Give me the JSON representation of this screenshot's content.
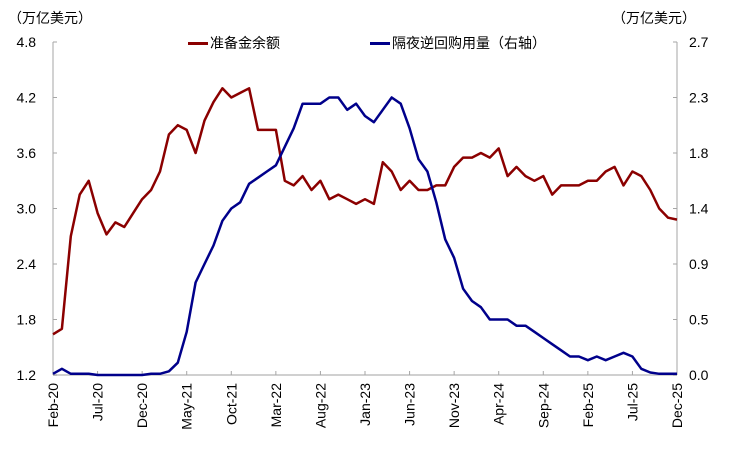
{
  "chart_data": {
    "type": "line",
    "title": "",
    "left_axis": {
      "unit_label": "（万亿美元）",
      "ticks": [
        "4.8",
        "4.2",
        "3.6",
        "3.0",
        "2.4",
        "1.8",
        "1.2"
      ],
      "ylim": [
        1.2,
        4.8
      ]
    },
    "right_axis": {
      "unit_label": "（万亿美元）",
      "ticks": [
        "2.7",
        "2.3",
        "1.8",
        "1.4",
        "0.9",
        "0.5",
        "0.0"
      ],
      "ylim": [
        0.0,
        2.7
      ]
    },
    "x_tick_labels": [
      "Feb-20",
      "Jul-20",
      "Dec-20",
      "May-21",
      "Oct-21",
      "Mar-22",
      "Aug-22",
      "Jan-23",
      "Jun-23",
      "Nov-23",
      "Apr-24",
      "Sep-24",
      "Feb-25",
      "Jul-25",
      "Dec-25"
    ],
    "legend_position": "top",
    "grid": false,
    "series": [
      {
        "name": "准备金余额",
        "axis": "left",
        "color": "#8B0000",
        "points": [
          [
            "Feb-20",
            1.64
          ],
          [
            "Mar-20",
            1.7
          ],
          [
            "Apr-20",
            2.7
          ],
          [
            "May-20",
            3.15
          ],
          [
            "Jun-20",
            3.3
          ],
          [
            "Jul-20",
            2.95
          ],
          [
            "Aug-20",
            2.72
          ],
          [
            "Sep-20",
            2.85
          ],
          [
            "Oct-20",
            2.8
          ],
          [
            "Nov-20",
            2.95
          ],
          [
            "Dec-20",
            3.1
          ],
          [
            "Jan-21",
            3.2
          ],
          [
            "Feb-21",
            3.4
          ],
          [
            "Mar-21",
            3.8
          ],
          [
            "Apr-21",
            3.9
          ],
          [
            "May-21",
            3.85
          ],
          [
            "Jun-21",
            3.6
          ],
          [
            "Jul-21",
            3.95
          ],
          [
            "Aug-21",
            4.15
          ],
          [
            "Sep-21",
            4.3
          ],
          [
            "Oct-21",
            4.2
          ],
          [
            "Nov-21",
            4.25
          ],
          [
            "Dec-21",
            4.3
          ],
          [
            "Jan-22",
            3.85
          ],
          [
            "Feb-22",
            3.85
          ],
          [
            "Mar-22",
            3.85
          ],
          [
            "Apr-22",
            3.3
          ],
          [
            "May-22",
            3.25
          ],
          [
            "Jun-22",
            3.35
          ],
          [
            "Jul-22",
            3.2
          ],
          [
            "Aug-22",
            3.3
          ],
          [
            "Sep-22",
            3.1
          ],
          [
            "Oct-22",
            3.15
          ],
          [
            "Nov-22",
            3.1
          ],
          [
            "Dec-22",
            3.05
          ],
          [
            "Jan-23",
            3.1
          ],
          [
            "Feb-23",
            3.05
          ],
          [
            "Mar-23",
            3.5
          ],
          [
            "Apr-23",
            3.4
          ],
          [
            "May-23",
            3.2
          ],
          [
            "Jun-23",
            3.3
          ],
          [
            "Jul-23",
            3.2
          ],
          [
            "Aug-23",
            3.2
          ],
          [
            "Sep-23",
            3.25
          ],
          [
            "Oct-23",
            3.25
          ],
          [
            "Nov-23",
            3.45
          ],
          [
            "Dec-23",
            3.55
          ],
          [
            "Jan-24",
            3.55
          ],
          [
            "Feb-24",
            3.6
          ],
          [
            "Mar-24",
            3.55
          ],
          [
            "Apr-24",
            3.65
          ],
          [
            "May-24",
            3.35
          ],
          [
            "Jun-24",
            3.45
          ],
          [
            "Jul-24",
            3.35
          ],
          [
            "Aug-24",
            3.3
          ],
          [
            "Sep-24",
            3.35
          ],
          [
            "Oct-24",
            3.15
          ],
          [
            "Nov-24",
            3.25
          ],
          [
            "Dec-24",
            3.25
          ],
          [
            "Jan-25",
            3.25
          ],
          [
            "Feb-25",
            3.3
          ],
          [
            "Mar-25",
            3.3
          ],
          [
            "Apr-25",
            3.4
          ],
          [
            "May-25",
            3.45
          ],
          [
            "Jun-25",
            3.25
          ],
          [
            "Jul-25",
            3.4
          ],
          [
            "Aug-25",
            3.35
          ],
          [
            "Sep-25",
            3.2
          ],
          [
            "Oct-25",
            3.0
          ],
          [
            "Nov-25",
            2.9
          ],
          [
            "Dec-25",
            2.88
          ]
        ]
      },
      {
        "name": "隔夜逆回购用量（右轴）",
        "axis": "right",
        "color": "#00008B",
        "points": [
          [
            "Feb-20",
            0.01
          ],
          [
            "Mar-20",
            0.05
          ],
          [
            "Apr-20",
            0.01
          ],
          [
            "May-20",
            0.01
          ],
          [
            "Jun-20",
            0.01
          ],
          [
            "Jul-20",
            0.0
          ],
          [
            "Aug-20",
            0.0
          ],
          [
            "Sep-20",
            0.0
          ],
          [
            "Oct-20",
            0.0
          ],
          [
            "Nov-20",
            0.0
          ],
          [
            "Dec-20",
            0.0
          ],
          [
            "Jan-21",
            0.01
          ],
          [
            "Feb-21",
            0.01
          ],
          [
            "Mar-21",
            0.03
          ],
          [
            "Apr-21",
            0.1
          ],
          [
            "May-21",
            0.35
          ],
          [
            "Jun-21",
            0.75
          ],
          [
            "Jul-21",
            0.9
          ],
          [
            "Aug-21",
            1.05
          ],
          [
            "Sep-21",
            1.25
          ],
          [
            "Oct-21",
            1.35
          ],
          [
            "Nov-21",
            1.4
          ],
          [
            "Dec-21",
            1.55
          ],
          [
            "Jan-22",
            1.6
          ],
          [
            "Feb-22",
            1.65
          ],
          [
            "Mar-22",
            1.7
          ],
          [
            "Apr-22",
            1.85
          ],
          [
            "May-22",
            2.0
          ],
          [
            "Jun-22",
            2.2
          ],
          [
            "Jul-22",
            2.2
          ],
          [
            "Aug-22",
            2.2
          ],
          [
            "Sep-22",
            2.25
          ],
          [
            "Oct-22",
            2.25
          ],
          [
            "Nov-22",
            2.15
          ],
          [
            "Dec-22",
            2.2
          ],
          [
            "Jan-23",
            2.1
          ],
          [
            "Feb-23",
            2.05
          ],
          [
            "Mar-23",
            2.15
          ],
          [
            "Apr-23",
            2.25
          ],
          [
            "May-23",
            2.2
          ],
          [
            "Jun-23",
            2.0
          ],
          [
            "Jul-23",
            1.75
          ],
          [
            "Aug-23",
            1.65
          ],
          [
            "Sep-23",
            1.4
          ],
          [
            "Oct-23",
            1.1
          ],
          [
            "Nov-23",
            0.95
          ],
          [
            "Dec-23",
            0.7
          ],
          [
            "Jan-24",
            0.6
          ],
          [
            "Feb-24",
            0.55
          ],
          [
            "Mar-24",
            0.45
          ],
          [
            "Apr-24",
            0.45
          ],
          [
            "May-24",
            0.45
          ],
          [
            "Jun-24",
            0.4
          ],
          [
            "Jul-24",
            0.4
          ],
          [
            "Aug-24",
            0.35
          ],
          [
            "Sep-24",
            0.3
          ],
          [
            "Oct-24",
            0.25
          ],
          [
            "Nov-24",
            0.2
          ],
          [
            "Dec-24",
            0.15
          ],
          [
            "Jan-25",
            0.15
          ],
          [
            "Feb-25",
            0.12
          ],
          [
            "Mar-25",
            0.15
          ],
          [
            "Apr-25",
            0.12
          ],
          [
            "May-25",
            0.15
          ],
          [
            "Jun-25",
            0.18
          ],
          [
            "Jul-25",
            0.15
          ],
          [
            "Aug-25",
            0.05
          ],
          [
            "Sep-25",
            0.02
          ],
          [
            "Oct-25",
            0.01
          ],
          [
            "Nov-25",
            0.01
          ],
          [
            "Dec-25",
            0.01
          ]
        ]
      }
    ]
  },
  "legend": {
    "items": [
      {
        "label": "准备金余额",
        "color": "#8B0000"
      },
      {
        "label": "隔夜逆回购用量（右轴）",
        "color": "#00008B"
      }
    ]
  }
}
